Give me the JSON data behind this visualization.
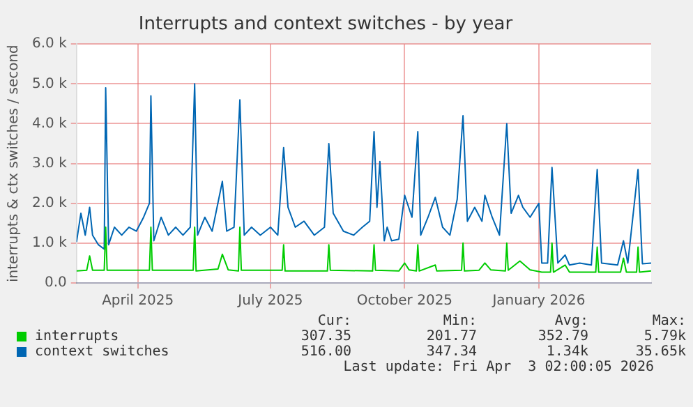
{
  "chart_data": {
    "type": "line",
    "title": "Interrupts and context switches - by year",
    "ylabel": "interrupts & ctx switches / second",
    "xlim": [
      "2025-03-05",
      "2026-04-03"
    ],
    "xticks": [
      {
        "value": "2025-04-16",
        "label": "April 2025"
      },
      {
        "value": "2025-07-16",
        "label": "July 2025"
      },
      {
        "value": "2025-10-16",
        "label": "October 2025"
      },
      {
        "value": "2026-01-16",
        "label": "January 2026"
      }
    ],
    "ylim": [
      0,
      6000
    ],
    "yticks": [
      {
        "value": 0,
        "label": "0.0"
      },
      {
        "value": 1000,
        "label": "1.0 k"
      },
      {
        "value": 2000,
        "label": "2.0 k"
      },
      {
        "value": 3000,
        "label": "3.0 k"
      },
      {
        "value": 4000,
        "label": "4.0 k"
      },
      {
        "value": 5000,
        "label": "5.0 k"
      },
      {
        "value": 6000,
        "label": "6.0 k"
      }
    ],
    "grid": true,
    "legend": "bottom",
    "series": [
      {
        "name": "interrupts",
        "color": "#00cc00",
        "x": [
          "2025-03-05",
          "2025-03-12",
          "2025-03-14",
          "2025-03-16",
          "2025-03-24",
          "2025-03-25",
          "2025-03-26",
          "2025-04-24",
          "2025-04-25",
          "2025-04-26",
          "2025-05-24",
          "2025-05-25",
          "2025-05-26",
          "2025-06-10",
          "2025-06-13",
          "2025-06-17",
          "2025-06-24",
          "2025-06-25",
          "2025-06-26",
          "2025-07-24",
          "2025-07-25",
          "2025-07-26",
          "2025-08-24",
          "2025-08-25",
          "2025-08-26",
          "2025-09-24",
          "2025-09-25",
          "2025-09-26",
          "2025-10-12",
          "2025-10-16",
          "2025-10-19",
          "2025-10-24",
          "2025-10-25",
          "2025-10-26",
          "2025-11-06",
          "2025-11-07",
          "2025-11-24",
          "2025-11-25",
          "2025-11-26",
          "2025-12-06",
          "2025-12-10",
          "2025-12-14",
          "2025-12-24",
          "2025-12-25",
          "2025-12-26",
          "2026-01-03",
          "2026-01-10",
          "2026-01-18",
          "2026-01-24",
          "2026-01-25",
          "2026-01-26",
          "2026-02-03",
          "2026-02-06",
          "2026-02-24",
          "2026-02-25",
          "2026-02-26",
          "2026-03-13",
          "2026-03-15",
          "2026-03-17",
          "2026-03-24",
          "2026-03-25",
          "2026-03-26",
          "2026-04-03"
        ],
        "values": [
          300,
          320,
          680,
          320,
          320,
          1400,
          320,
          320,
          1400,
          320,
          320,
          1400,
          300,
          350,
          720,
          330,
          300,
          1400,
          320,
          320,
          960,
          300,
          300,
          960,
          320,
          300,
          960,
          320,
          300,
          500,
          330,
          300,
          960,
          300,
          450,
          300,
          320,
          1000,
          300,
          320,
          500,
          330,
          300,
          1000,
          320,
          550,
          330,
          270,
          270,
          1000,
          270,
          450,
          270,
          270,
          900,
          270,
          270,
          620,
          270,
          270,
          900,
          270,
          300
        ]
      },
      {
        "name": "context switches",
        "color": "#0066b3",
        "x": [
          "2025-03-05",
          "2025-03-08",
          "2025-03-11",
          "2025-03-14",
          "2025-03-16",
          "2025-03-20",
          "2025-03-24",
          "2025-03-25",
          "2025-03-27",
          "2025-03-31",
          "2025-04-05",
          "2025-04-10",
          "2025-04-15",
          "2025-04-20",
          "2025-04-24",
          "2025-04-25",
          "2025-04-27",
          "2025-05-02",
          "2025-05-07",
          "2025-05-12",
          "2025-05-17",
          "2025-05-22",
          "2025-05-25",
          "2025-05-27",
          "2025-06-01",
          "2025-06-06",
          "2025-06-13",
          "2025-06-16",
          "2025-06-21",
          "2025-06-25",
          "2025-06-28",
          "2025-07-03",
          "2025-07-09",
          "2025-07-16",
          "2025-07-21",
          "2025-07-25",
          "2025-07-28",
          "2025-08-02",
          "2025-08-08",
          "2025-08-15",
          "2025-08-22",
          "2025-08-25",
          "2025-08-28",
          "2025-09-04",
          "2025-09-11",
          "2025-09-17",
          "2025-09-22",
          "2025-09-25",
          "2025-09-27",
          "2025-09-29",
          "2025-10-02",
          "2025-10-04",
          "2025-10-07",
          "2025-10-12",
          "2025-10-16",
          "2025-10-21",
          "2025-10-25",
          "2025-10-27",
          "2025-11-01",
          "2025-11-06",
          "2025-11-11",
          "2025-11-16",
          "2025-11-21",
          "2025-11-25",
          "2025-11-28",
          "2025-12-03",
          "2025-12-08",
          "2025-12-10",
          "2025-12-15",
          "2025-12-20",
          "2025-12-25",
          "2025-12-28",
          "2026-01-02",
          "2026-01-05",
          "2026-01-10",
          "2026-01-16",
          "2026-01-18",
          "2026-01-22",
          "2026-01-25",
          "2026-01-29",
          "2026-02-03",
          "2026-02-06",
          "2026-02-13",
          "2026-02-21",
          "2026-02-25",
          "2026-02-28",
          "2026-03-11",
          "2026-03-15",
          "2026-03-18",
          "2026-03-25",
          "2026-03-28",
          "2026-04-03"
        ],
        "values": [
          1030,
          1750,
          1200,
          1900,
          1200,
          960,
          850,
          4900,
          960,
          1400,
          1200,
          1400,
          1300,
          1650,
          2000,
          4700,
          1060,
          1650,
          1200,
          1400,
          1200,
          1400,
          5000,
          1200,
          1650,
          1300,
          2550,
          1300,
          1400,
          4600,
          1200,
          1400,
          1200,
          1400,
          1200,
          3400,
          1900,
          1400,
          1550,
          1200,
          1400,
          3500,
          1750,
          1300,
          1200,
          1400,
          1550,
          3800,
          1900,
          3050,
          1060,
          1400,
          1060,
          1100,
          2200,
          1650,
          3800,
          1200,
          1650,
          2150,
          1400,
          1200,
          2100,
          4200,
          1550,
          1900,
          1550,
          2200,
          1650,
          1200,
          4000,
          1750,
          2200,
          1900,
          1650,
          2000,
          500,
          500,
          2900,
          500,
          700,
          450,
          500,
          450,
          2850,
          500,
          450,
          1060,
          500,
          2850,
          480,
          500
        ]
      }
    ],
    "annotations": [
      "Cur:",
      "Min:",
      "Avg:",
      "Max:",
      "307.35",
      "201.77",
      "352.79",
      "5.79k",
      "516.00",
      "347.34",
      "1.34k",
      "35.65k",
      "Last update: Fri Apr  3 02:00:05 2026"
    ]
  }
}
